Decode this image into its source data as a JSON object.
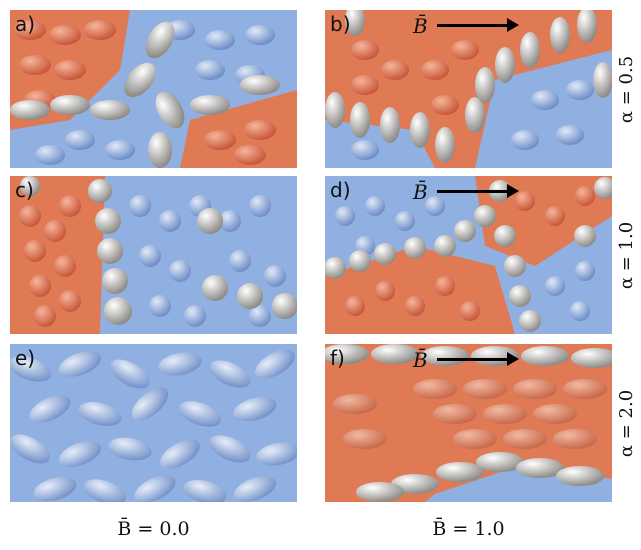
{
  "panels": [
    {
      "label": "a)",
      "b_field_label": ""
    },
    {
      "label": "b)",
      "b_field_label": "B̄"
    },
    {
      "label": "c)",
      "b_field_label": ""
    },
    {
      "label": "d)",
      "b_field_label": "B̄"
    },
    {
      "label": "e)",
      "b_field_label": ""
    },
    {
      "label": "f)",
      "b_field_label": "B̄"
    }
  ],
  "row_labels": [
    "α = 0.5",
    "α = 1.0",
    "α = 2.0"
  ],
  "column_labels": [
    "B̄ = 0.0",
    "B̄ = 1.0"
  ],
  "colors": {
    "red_domain": "#e07a55",
    "blue_domain": "#8fb0e0",
    "interface_particles": "#d8d6d2",
    "arrow": "#000000"
  }
}
